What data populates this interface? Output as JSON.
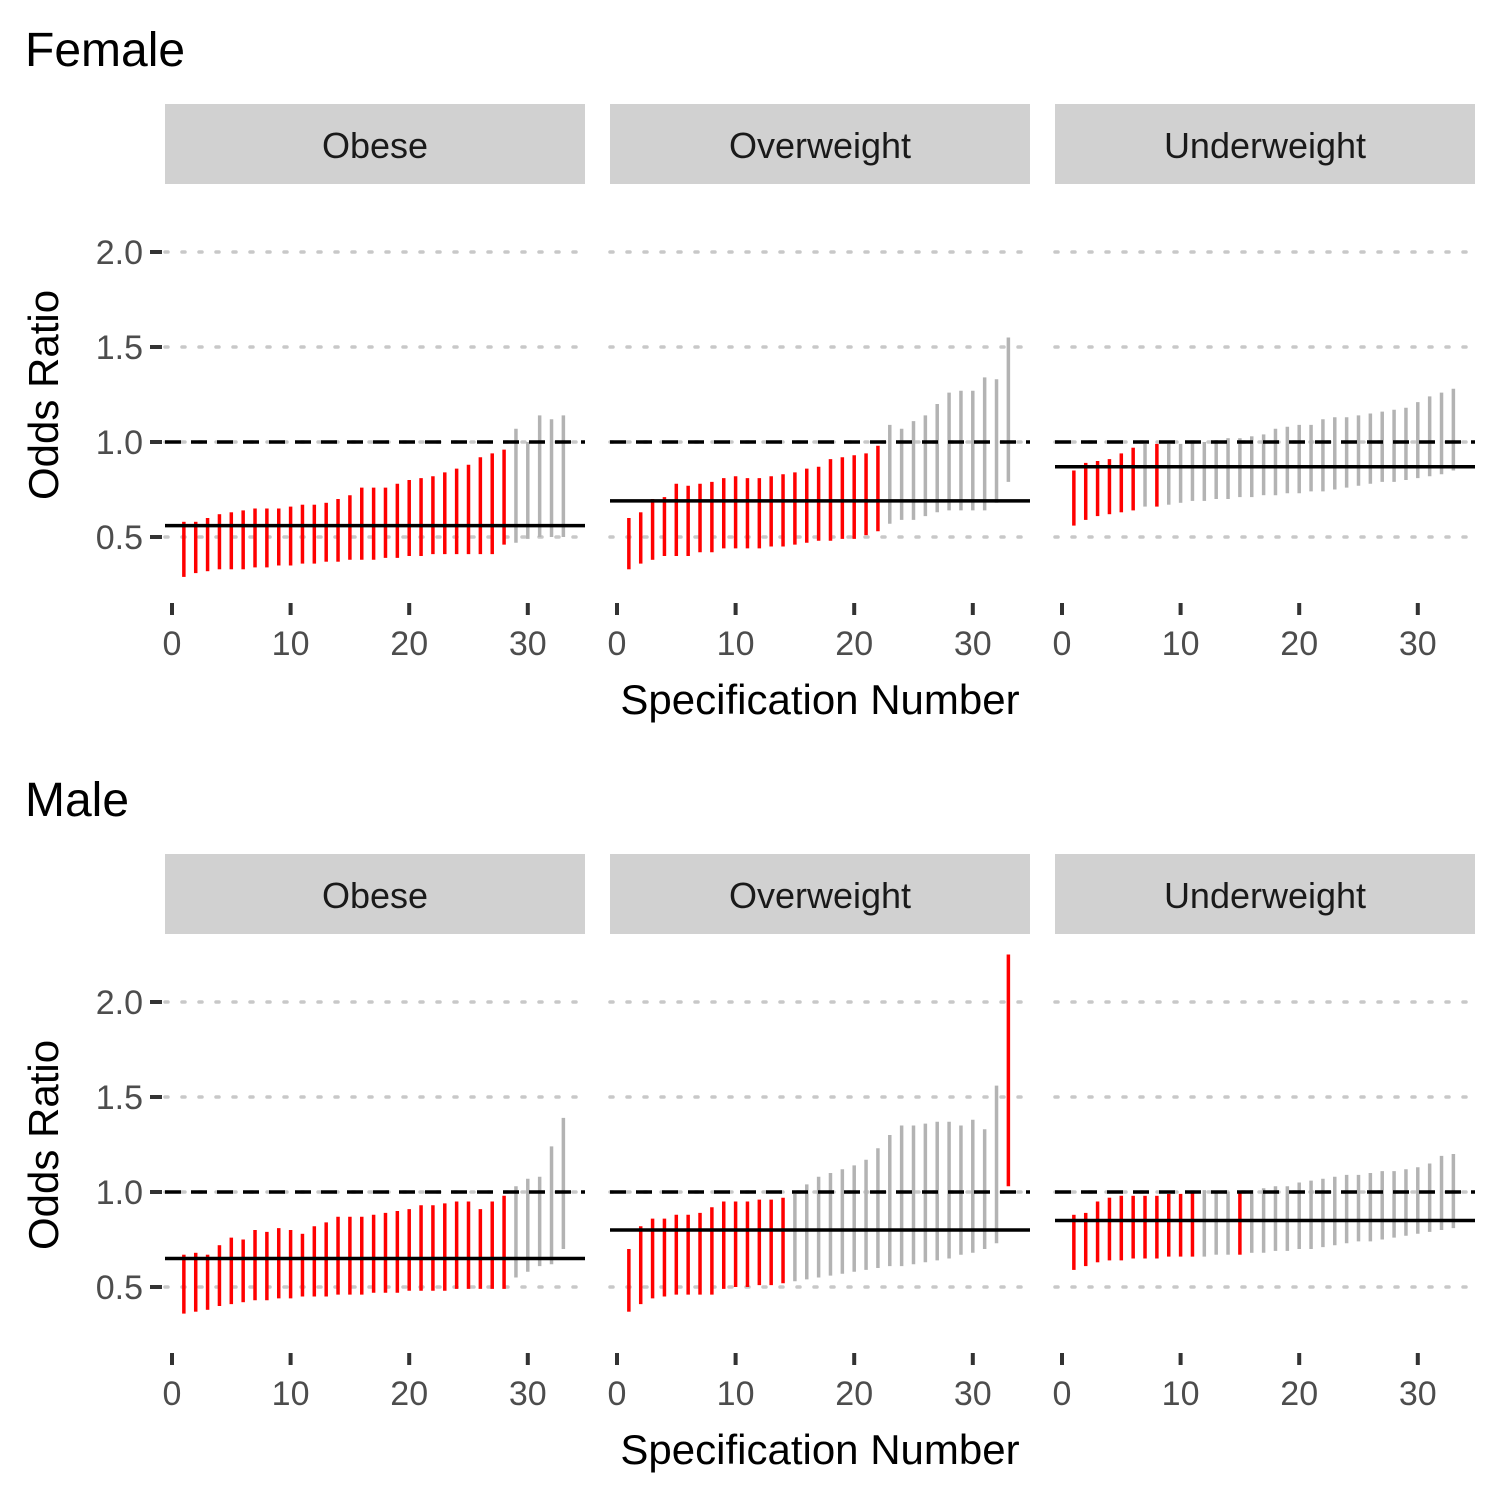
{
  "chart_data": {
    "type": "interval",
    "ylabel": "Odds Ratio",
    "xlabel": "Specification Number",
    "y_ticks": [
      0.5,
      1.0,
      1.5,
      2.0
    ],
    "y_tick_labels": [
      "0.5",
      "1.0",
      "1.5",
      "2.0"
    ],
    "x_ticks": [
      0,
      10,
      20,
      30
    ],
    "x_tick_labels": [
      "0",
      "10",
      "20",
      "30"
    ],
    "xlim": [
      0,
      34
    ],
    "ylim": [
      0.2,
      2.4
    ],
    "reference_line": 1.0,
    "colors": {
      "significant": "#ff0000",
      "not_significant": "#b3b3b3",
      "estimate_line": "#000000",
      "strip_bg": "#d1d1d1",
      "grid": "#c8c8c8"
    },
    "groups": [
      {
        "title": "Female",
        "facets": [
          {
            "name": "Obese",
            "estimate": 0.56,
            "low": [
              0.29,
              0.31,
              0.32,
              0.33,
              0.33,
              0.33,
              0.34,
              0.34,
              0.35,
              0.35,
              0.36,
              0.36,
              0.37,
              0.37,
              0.38,
              0.38,
              0.38,
              0.39,
              0.39,
              0.4,
              0.4,
              0.41,
              0.41,
              0.41,
              0.41,
              0.41,
              0.41,
              0.46,
              0.47,
              0.49,
              0.5,
              0.5,
              0.5
            ],
            "high": [
              0.58,
              0.58,
              0.6,
              0.62,
              0.63,
              0.64,
              0.65,
              0.65,
              0.65,
              0.66,
              0.67,
              0.67,
              0.68,
              0.7,
              0.72,
              0.76,
              0.76,
              0.76,
              0.78,
              0.8,
              0.81,
              0.82,
              0.84,
              0.86,
              0.88,
              0.92,
              0.94,
              0.96,
              1.07,
              1.0,
              1.14,
              1.12,
              1.14
            ],
            "sig": [
              1,
              1,
              1,
              1,
              1,
              1,
              1,
              1,
              1,
              1,
              1,
              1,
              1,
              1,
              1,
              1,
              1,
              1,
              1,
              1,
              1,
              1,
              1,
              1,
              1,
              1,
              1,
              1,
              0,
              0,
              0,
              0,
              0
            ]
          },
          {
            "name": "Overweight",
            "estimate": 0.69,
            "low": [
              0.33,
              0.36,
              0.38,
              0.4,
              0.4,
              0.4,
              0.42,
              0.42,
              0.44,
              0.44,
              0.44,
              0.44,
              0.45,
              0.45,
              0.46,
              0.47,
              0.48,
              0.48,
              0.49,
              0.49,
              0.51,
              0.53,
              0.57,
              0.59,
              0.59,
              0.61,
              0.63,
              0.64,
              0.64,
              0.64,
              0.64,
              0.68,
              0.79
            ],
            "high": [
              0.6,
              0.63,
              0.7,
              0.71,
              0.78,
              0.77,
              0.78,
              0.79,
              0.81,
              0.82,
              0.81,
              0.81,
              0.82,
              0.83,
              0.84,
              0.86,
              0.87,
              0.91,
              0.92,
              0.93,
              0.94,
              0.98,
              1.09,
              1.07,
              1.11,
              1.14,
              1.2,
              1.26,
              1.27,
              1.27,
              1.34,
              1.33,
              1.55
            ],
            "sig": [
              1,
              1,
              1,
              1,
              1,
              1,
              1,
              1,
              1,
              1,
              1,
              1,
              1,
              1,
              1,
              1,
              1,
              1,
              1,
              1,
              1,
              1,
              0,
              0,
              0,
              0,
              0,
              0,
              0,
              0,
              0,
              0,
              0
            ]
          },
          {
            "name": "Underweight",
            "estimate": 0.87,
            "low": [
              0.56,
              0.59,
              0.61,
              0.62,
              0.63,
              0.64,
              0.66,
              0.66,
              0.67,
              0.68,
              0.69,
              0.69,
              0.7,
              0.7,
              0.71,
              0.71,
              0.72,
              0.72,
              0.73,
              0.73,
              0.74,
              0.74,
              0.75,
              0.76,
              0.77,
              0.78,
              0.79,
              0.79,
              0.8,
              0.81,
              0.82,
              0.83,
              0.85
            ],
            "high": [
              0.85,
              0.89,
              0.9,
              0.91,
              0.94,
              0.97,
              0.99,
              0.99,
              0.99,
              0.99,
              1.0,
              1.0,
              1.01,
              1.02,
              1.02,
              1.03,
              1.04,
              1.07,
              1.08,
              1.09,
              1.09,
              1.12,
              1.13,
              1.13,
              1.14,
              1.15,
              1.16,
              1.17,
              1.18,
              1.21,
              1.24,
              1.26,
              1.28
            ],
            "sig": [
              1,
              1,
              1,
              1,
              1,
              1,
              0,
              1,
              0,
              0,
              0,
              0,
              0,
              0,
              0,
              0,
              0,
              0,
              0,
              0,
              0,
              0,
              0,
              0,
              0,
              0,
              0,
              0,
              0,
              0,
              0,
              0,
              0
            ]
          }
        ]
      },
      {
        "title": "Male",
        "facets": [
          {
            "name": "Obese",
            "estimate": 0.65,
            "low": [
              0.36,
              0.37,
              0.38,
              0.4,
              0.41,
              0.42,
              0.43,
              0.43,
              0.44,
              0.44,
              0.45,
              0.45,
              0.45,
              0.46,
              0.46,
              0.46,
              0.47,
              0.47,
              0.47,
              0.48,
              0.48,
              0.48,
              0.48,
              0.49,
              0.49,
              0.49,
              0.49,
              0.49,
              0.55,
              0.58,
              0.61,
              0.62,
              0.7
            ],
            "high": [
              0.67,
              0.68,
              0.67,
              0.72,
              0.76,
              0.75,
              0.8,
              0.79,
              0.81,
              0.8,
              0.78,
              0.82,
              0.84,
              0.87,
              0.87,
              0.87,
              0.88,
              0.89,
              0.9,
              0.91,
              0.93,
              0.93,
              0.94,
              0.95,
              0.95,
              0.91,
              0.95,
              0.98,
              1.03,
              1.07,
              1.08,
              1.24,
              1.39
            ],
            "sig": [
              1,
              1,
              1,
              1,
              1,
              1,
              1,
              1,
              1,
              1,
              1,
              1,
              1,
              1,
              1,
              1,
              1,
              1,
              1,
              1,
              1,
              1,
              1,
              1,
              1,
              1,
              1,
              1,
              0,
              0,
              0,
              0,
              0
            ]
          },
          {
            "name": "Overweight",
            "estimate": 0.8,
            "low": [
              0.37,
              0.41,
              0.44,
              0.45,
              0.46,
              0.46,
              0.46,
              0.46,
              0.49,
              0.5,
              0.5,
              0.51,
              0.51,
              0.52,
              0.53,
              0.54,
              0.55,
              0.56,
              0.57,
              0.58,
              0.59,
              0.6,
              0.61,
              0.61,
              0.62,
              0.63,
              0.64,
              0.65,
              0.67,
              0.68,
              0.7,
              0.73,
              1.03
            ],
            "high": [
              0.7,
              0.82,
              0.86,
              0.86,
              0.88,
              0.88,
              0.89,
              0.92,
              0.95,
              0.95,
              0.95,
              0.96,
              0.96,
              0.97,
              0.99,
              1.04,
              1.08,
              1.1,
              1.12,
              1.14,
              1.17,
              1.23,
              1.3,
              1.35,
              1.35,
              1.36,
              1.37,
              1.37,
              1.35,
              1.38,
              1.33,
              1.56,
              2.25
            ],
            "sig": [
              1,
              1,
              1,
              1,
              1,
              1,
              1,
              1,
              1,
              1,
              1,
              1,
              1,
              1,
              0,
              0,
              0,
              0,
              0,
              0,
              0,
              0,
              0,
              0,
              0,
              0,
              0,
              0,
              0,
              0,
              0,
              0,
              1
            ]
          },
          {
            "name": "Underweight",
            "estimate": 0.85,
            "low": [
              0.59,
              0.61,
              0.63,
              0.64,
              0.64,
              0.65,
              0.65,
              0.65,
              0.66,
              0.66,
              0.66,
              0.66,
              0.67,
              0.67,
              0.67,
              0.68,
              0.68,
              0.69,
              0.69,
              0.7,
              0.7,
              0.71,
              0.72,
              0.73,
              0.74,
              0.74,
              0.75,
              0.76,
              0.77,
              0.78,
              0.79,
              0.8,
              0.81
            ],
            "high": [
              0.88,
              0.89,
              0.95,
              0.97,
              0.98,
              0.98,
              0.98,
              0.98,
              0.99,
              0.99,
              1.0,
              1.01,
              1.0,
              1.0,
              1.0,
              1.01,
              1.02,
              1.03,
              1.03,
              1.05,
              1.06,
              1.07,
              1.08,
              1.09,
              1.09,
              1.1,
              1.11,
              1.11,
              1.12,
              1.13,
              1.15,
              1.19,
              1.2
            ],
            "sig": [
              1,
              1,
              1,
              1,
              1,
              1,
              1,
              1,
              1,
              1,
              1,
              0,
              0,
              0,
              1,
              0,
              0,
              0,
              0,
              0,
              0,
              0,
              0,
              0,
              0,
              0,
              0,
              0,
              0,
              0,
              0,
              0,
              0
            ]
          }
        ]
      }
    ]
  }
}
